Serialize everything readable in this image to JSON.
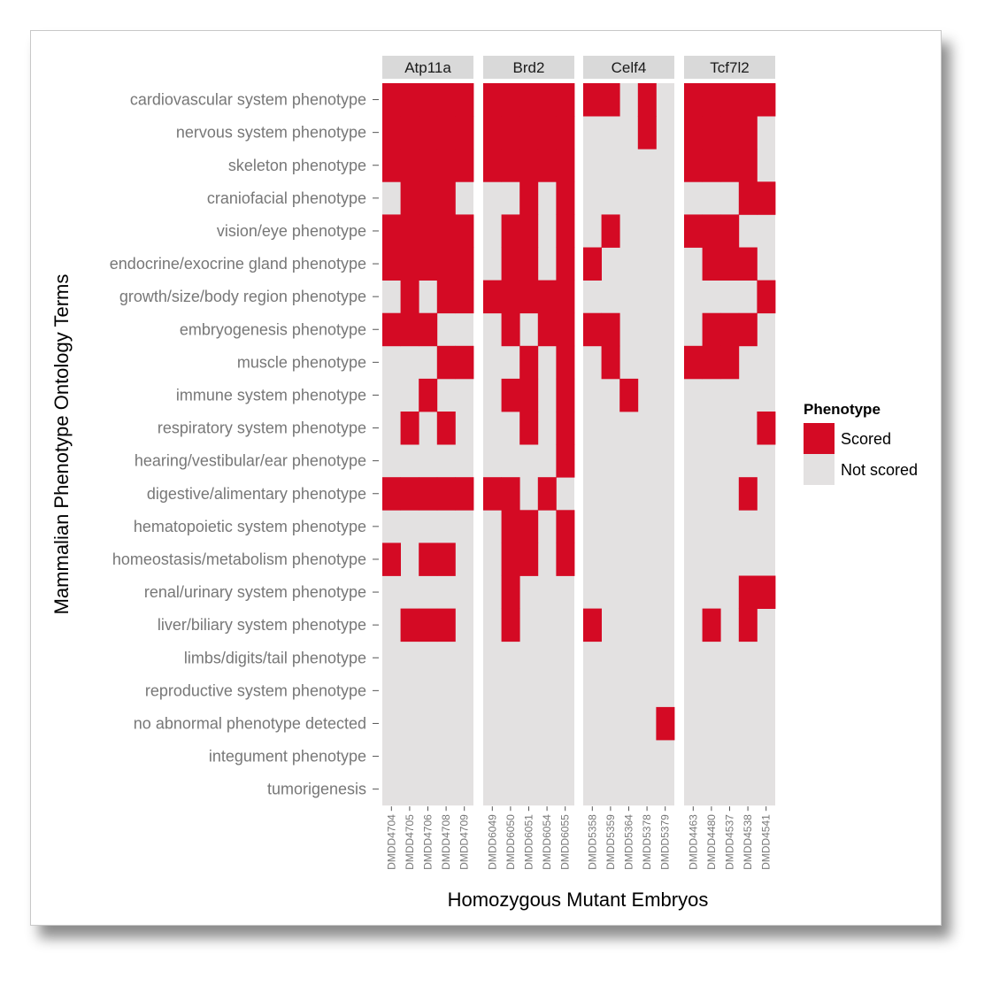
{
  "chart_data": {
    "type": "heatmap",
    "xlabel": "Homozygous Mutant Embryos",
    "ylabel": "Mammalian Phenotype Ontology Terms",
    "rows": [
      "cardiovascular system phenotype",
      "nervous system phenotype",
      "skeleton phenotype",
      "craniofacial phenotype",
      "vision/eye phenotype",
      "endocrine/exocrine gland phenotype",
      "growth/size/body region phenotype",
      "embryogenesis phenotype",
      "muscle phenotype",
      "immune system phenotype",
      "respiratory system phenotype",
      "hearing/vestibular/ear phenotype",
      "digestive/alimentary phenotype",
      "hematopoietic system phenotype",
      "homeostasis/metabolism phenotype",
      "renal/urinary system phenotype",
      "liver/biliary system phenotype",
      "limbs/digits/tail phenotype",
      "reproductive system phenotype",
      "no abnormal phenotype detected",
      "integument phenotype",
      "tumorigenesis"
    ],
    "legend": {
      "title": "Phenotype",
      "items": [
        {
          "label": "Scored",
          "color": "#d40a24"
        },
        {
          "label": "Not scored",
          "color": "#e3e1e1"
        }
      ]
    },
    "panels": [
      {
        "name": "Atp11a",
        "columns": [
          "DMDD4704",
          "DMDD4705",
          "DMDD4706",
          "DMDD4708",
          "DMDD4709"
        ],
        "values": [
          [
            1,
            1,
            1,
            1,
            1
          ],
          [
            1,
            1,
            1,
            1,
            1
          ],
          [
            1,
            1,
            1,
            1,
            1
          ],
          [
            0,
            1,
            1,
            1,
            0
          ],
          [
            1,
            1,
            1,
            1,
            1
          ],
          [
            1,
            1,
            1,
            1,
            1
          ],
          [
            0,
            1,
            0,
            1,
            1
          ],
          [
            1,
            1,
            1,
            0,
            0
          ],
          [
            0,
            0,
            0,
            1,
            1
          ],
          [
            0,
            0,
            1,
            0,
            0
          ],
          [
            0,
            1,
            0,
            1,
            0
          ],
          [
            0,
            0,
            0,
            0,
            0
          ],
          [
            1,
            1,
            1,
            1,
            1
          ],
          [
            0,
            0,
            0,
            0,
            0
          ],
          [
            1,
            0,
            1,
            1,
            0
          ],
          [
            0,
            0,
            0,
            0,
            0
          ],
          [
            0,
            1,
            1,
            1,
            0
          ],
          [
            0,
            0,
            0,
            0,
            0
          ],
          [
            0,
            0,
            0,
            0,
            0
          ],
          [
            0,
            0,
            0,
            0,
            0
          ],
          [
            0,
            0,
            0,
            0,
            0
          ],
          [
            0,
            0,
            0,
            0,
            0
          ]
        ]
      },
      {
        "name": "Brd2",
        "columns": [
          "DMDD6049",
          "DMDD6050",
          "DMDD6051",
          "DMDD6054",
          "DMDD6055"
        ],
        "values": [
          [
            1,
            1,
            1,
            1,
            1
          ],
          [
            1,
            1,
            1,
            1,
            1
          ],
          [
            1,
            1,
            1,
            1,
            1
          ],
          [
            0,
            0,
            1,
            0,
            1
          ],
          [
            0,
            1,
            1,
            0,
            1
          ],
          [
            0,
            1,
            1,
            0,
            1
          ],
          [
            1,
            1,
            1,
            1,
            1
          ],
          [
            0,
            1,
            0,
            1,
            1
          ],
          [
            0,
            0,
            1,
            0,
            1
          ],
          [
            0,
            1,
            1,
            0,
            1
          ],
          [
            0,
            0,
            1,
            0,
            1
          ],
          [
            0,
            0,
            0,
            0,
            1
          ],
          [
            1,
            1,
            0,
            1,
            0
          ],
          [
            0,
            1,
            1,
            0,
            1
          ],
          [
            0,
            1,
            1,
            0,
            1
          ],
          [
            0,
            1,
            0,
            0,
            0
          ],
          [
            0,
            1,
            0,
            0,
            0
          ],
          [
            0,
            0,
            0,
            0,
            0
          ],
          [
            0,
            0,
            0,
            0,
            0
          ],
          [
            0,
            0,
            0,
            0,
            0
          ],
          [
            0,
            0,
            0,
            0,
            0
          ],
          [
            0,
            0,
            0,
            0,
            0
          ]
        ]
      },
      {
        "name": "Celf4",
        "columns": [
          "DMDD5358",
          "DMDD5359",
          "DMDD5364",
          "DMDD5378",
          "DMDD5379"
        ],
        "values": [
          [
            1,
            1,
            0,
            1,
            0
          ],
          [
            0,
            0,
            0,
            1,
            0
          ],
          [
            0,
            0,
            0,
            0,
            0
          ],
          [
            0,
            0,
            0,
            0,
            0
          ],
          [
            0,
            1,
            0,
            0,
            0
          ],
          [
            1,
            0,
            0,
            0,
            0
          ],
          [
            0,
            0,
            0,
            0,
            0
          ],
          [
            1,
            1,
            0,
            0,
            0
          ],
          [
            0,
            1,
            0,
            0,
            0
          ],
          [
            0,
            0,
            1,
            0,
            0
          ],
          [
            0,
            0,
            0,
            0,
            0
          ],
          [
            0,
            0,
            0,
            0,
            0
          ],
          [
            0,
            0,
            0,
            0,
            0
          ],
          [
            0,
            0,
            0,
            0,
            0
          ],
          [
            0,
            0,
            0,
            0,
            0
          ],
          [
            0,
            0,
            0,
            0,
            0
          ],
          [
            1,
            0,
            0,
            0,
            0
          ],
          [
            0,
            0,
            0,
            0,
            0
          ],
          [
            0,
            0,
            0,
            0,
            0
          ],
          [
            0,
            0,
            0,
            0,
            1
          ],
          [
            0,
            0,
            0,
            0,
            0
          ],
          [
            0,
            0,
            0,
            0,
            0
          ]
        ]
      },
      {
        "name": "Tcf7l2",
        "columns": [
          "DMDD4463",
          "DMDD4480",
          "DMDD4537",
          "DMDD4538",
          "DMDD4541"
        ],
        "values": [
          [
            1,
            1,
            1,
            1,
            1
          ],
          [
            1,
            1,
            1,
            1,
            0
          ],
          [
            1,
            1,
            1,
            1,
            0
          ],
          [
            0,
            0,
            0,
            1,
            1
          ],
          [
            1,
            1,
            1,
            0,
            0
          ],
          [
            0,
            1,
            1,
            1,
            0
          ],
          [
            0,
            0,
            0,
            0,
            1
          ],
          [
            0,
            1,
            1,
            1,
            0
          ],
          [
            1,
            1,
            1,
            0,
            0
          ],
          [
            0,
            0,
            0,
            0,
            0
          ],
          [
            0,
            0,
            0,
            0,
            1
          ],
          [
            0,
            0,
            0,
            0,
            0
          ],
          [
            0,
            0,
            0,
            1,
            0
          ],
          [
            0,
            0,
            0,
            0,
            0
          ],
          [
            0,
            0,
            0,
            0,
            0
          ],
          [
            0,
            0,
            0,
            1,
            1
          ],
          [
            0,
            1,
            0,
            1,
            0
          ],
          [
            0,
            0,
            0,
            0,
            0
          ],
          [
            0,
            0,
            0,
            0,
            0
          ],
          [
            0,
            0,
            0,
            0,
            0
          ],
          [
            0,
            0,
            0,
            0,
            0
          ],
          [
            0,
            0,
            0,
            0,
            0
          ]
        ]
      }
    ]
  }
}
